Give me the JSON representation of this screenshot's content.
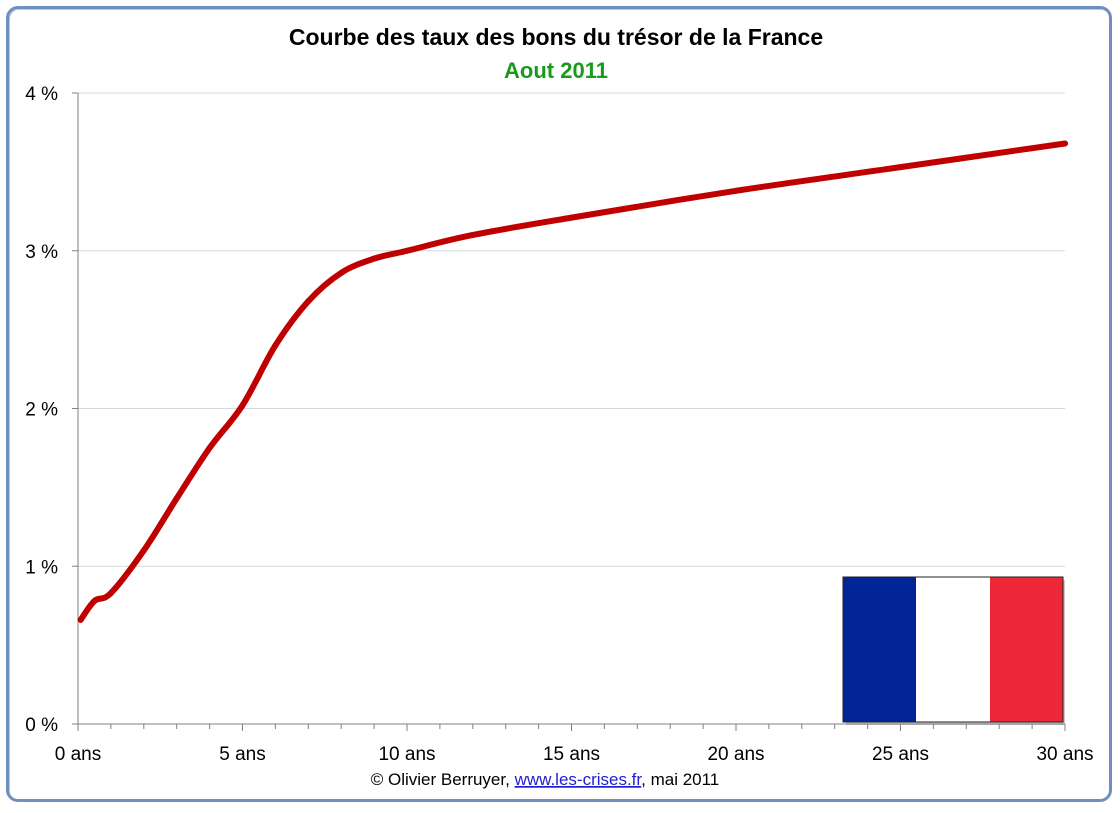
{
  "chart_data": {
    "type": "line",
    "title": "Courbe des taux des bons du trésor de la France",
    "subtitle": "Aout 2011",
    "xlabel": "",
    "ylabel": "",
    "xlim": [
      0,
      30
    ],
    "ylim": [
      0,
      4
    ],
    "x_ticks": [
      0,
      5,
      10,
      15,
      20,
      25,
      30
    ],
    "x_tick_labels": [
      "0 ans",
      "5 ans",
      "10 ans",
      "15 ans",
      "20 ans",
      "25 ans",
      "30 ans"
    ],
    "y_ticks": [
      0,
      1,
      2,
      3,
      4
    ],
    "y_tick_labels": [
      "0 %",
      "1 %",
      "2 %",
      "3 %",
      "4 %"
    ],
    "grid": "horizontal",
    "legend": "none",
    "series": [
      {
        "color": "#c00000",
        "x": [
          0.08,
          0.5,
          1,
          2,
          3,
          4,
          5,
          6,
          7,
          8,
          9,
          10,
          12,
          15,
          20,
          25,
          30
        ],
        "y": [
          0.66,
          0.78,
          0.83,
          1.1,
          1.43,
          1.75,
          2.02,
          2.4,
          2.68,
          2.86,
          2.95,
          3.0,
          3.1,
          3.21,
          3.38,
          3.53,
          3.68
        ]
      }
    ],
    "annotations": {
      "flag": "france-flag",
      "flag_colors": [
        "#002395",
        "#ffffff",
        "#ed2939"
      ],
      "flag_placement": "bottom-right"
    }
  },
  "credit": {
    "prefix": "© Olivier Berruyer, ",
    "link": "www.les-crises.fr",
    "suffix": ", mai 2011"
  },
  "colors": {
    "frame_border": "#6f8fbf",
    "subtitle": "#1a9a1a",
    "gridline": "#d9d9d9",
    "axis": "#808080"
  }
}
